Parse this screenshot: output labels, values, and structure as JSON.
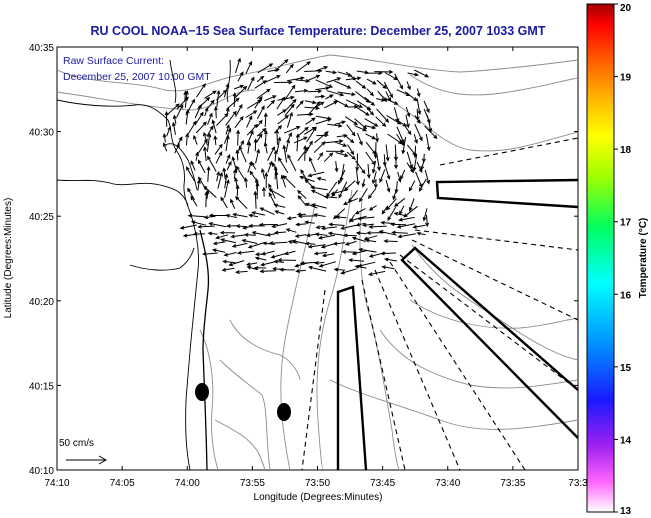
{
  "header": {
    "title": "RU COOL  NOAA−15  Sea Surface Temperature:  December 25, 2007 1033 GMT"
  },
  "overlay": {
    "line1": "Raw Surface Current:",
    "line2": "December 25, 2007 10:00 GMT"
  },
  "axes": {
    "xlabel": "Longitude (Degrees:Minutes)",
    "ylabel": "Latitude (Degrees:Minutes)",
    "x_ticks": [
      "74:10",
      "74:05",
      "74:00",
      "73:55",
      "73:50",
      "73:45",
      "73:40",
      "73:35",
      "73:3"
    ],
    "y_ticks": [
      "40:35",
      "40:30",
      "40:25",
      "40:20",
      "40:15",
      "40:10"
    ]
  },
  "scale_bar": {
    "label": "50 cm/s"
  },
  "colorbar": {
    "label": "Temperature (°C)",
    "min": 13,
    "max": 20,
    "ticks": [
      "20",
      "19",
      "18",
      "17",
      "16",
      "15",
      "14",
      "13"
    ]
  },
  "colors": {
    "title": "#1a1aa0",
    "vectors": "#000000",
    "contours": "#8c8c8c",
    "coast": "#000000"
  }
}
